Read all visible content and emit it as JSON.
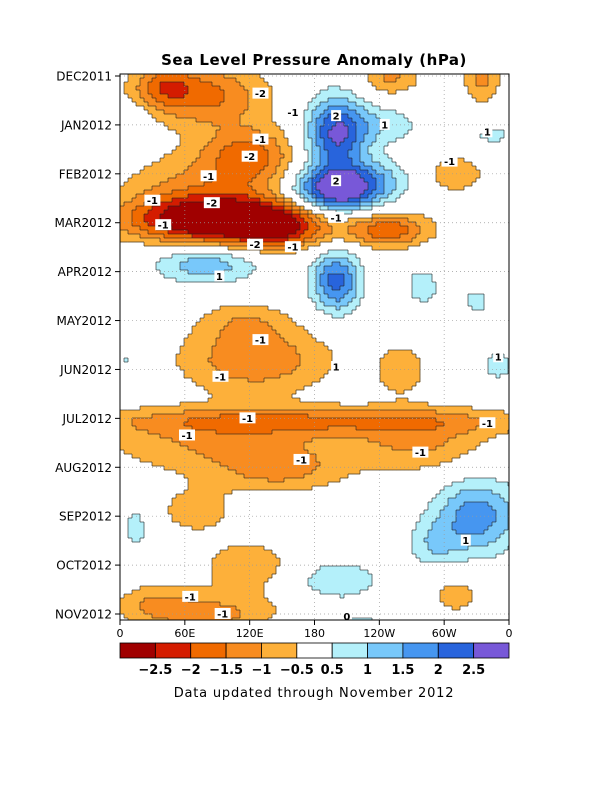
{
  "chart_data": {
    "type": "heatmap",
    "title": "Sea Level Pressure Anomaly (hPa)",
    "footer": "Data updated through November 2012",
    "x_axis": {
      "range": [
        0,
        360
      ],
      "ticks": [
        {
          "lon": 0,
          "label": "0"
        },
        {
          "lon": 60,
          "label": "60E"
        },
        {
          "lon": 120,
          "label": "120E"
        },
        {
          "lon": 180,
          "label": "180"
        },
        {
          "lon": 240,
          "label": "120W"
        },
        {
          "lon": 300,
          "label": "60W"
        },
        {
          "lon": 360,
          "label": "0"
        }
      ]
    },
    "y_axis": {
      "range": [
        0,
        11
      ],
      "direction": "top-to-bottom",
      "ticks": [
        {
          "month": 0,
          "label": "DEC2011"
        },
        {
          "month": 1,
          "label": "JAN2012"
        },
        {
          "month": 2,
          "label": "FEB2012"
        },
        {
          "month": 3,
          "label": "MAR2012"
        },
        {
          "month": 4,
          "label": "APR2012"
        },
        {
          "month": 5,
          "label": "MAY2012"
        },
        {
          "month": 6,
          "label": "JUN2012"
        },
        {
          "month": 7,
          "label": "JUL2012"
        },
        {
          "month": 8,
          "label": "AUG2012"
        },
        {
          "month": 9,
          "label": "SEP2012"
        },
        {
          "month": 10,
          "label": "OCT2012"
        },
        {
          "month": 11,
          "label": "NOV2012"
        }
      ]
    },
    "colorbar": {
      "bounds": [
        -3,
        -2.5,
        -2,
        -1.5,
        -1,
        -0.5,
        0.5,
        1,
        1.5,
        2,
        2.5,
        3
      ],
      "colors": [
        "#a00000",
        "#d41c00",
        "#f06a00",
        "#f88c20",
        "#fdb03a",
        "#ffffff",
        "#b4f0fa",
        "#78c8fa",
        "#4696f0",
        "#2864dc",
        "#7858d8"
      ],
      "labels": [
        {
          "at": -2.5,
          "text": "−2.5"
        },
        {
          "at": -2,
          "text": "−2"
        },
        {
          "at": -1.5,
          "text": "−1.5"
        },
        {
          "at": -1,
          "text": "−1"
        },
        {
          "at": -0.5,
          "text": "−0.5"
        },
        {
          "at": 0.5,
          "text": "0.5"
        },
        {
          "at": 1,
          "text": "1"
        },
        {
          "at": 1.5,
          "text": "1.5"
        },
        {
          "at": 2,
          "text": "2"
        },
        {
          "at": 2.5,
          "text": "2.5"
        }
      ]
    },
    "anomaly_features": [
      {
        "lon": 80,
        "month": 0.4,
        "value": -1.6,
        "sx": 40,
        "sy": 0.45
      },
      {
        "lon": 40,
        "month": 0.2,
        "value": -1.2,
        "sx": 20,
        "sy": 0.3
      },
      {
        "lon": 250,
        "month": 0.0,
        "value": -1.1,
        "sx": 20,
        "sy": 0.3
      },
      {
        "lon": 335,
        "month": 0.0,
        "value": -1.2,
        "sx": 12,
        "sy": 0.4
      },
      {
        "lon": 200,
        "month": 1.2,
        "value": 2.6,
        "sx": 20,
        "sy": 0.55
      },
      {
        "lon": 245,
        "month": 1.0,
        "value": 0.8,
        "sx": 25,
        "sy": 0.3
      },
      {
        "lon": 15,
        "month": 1.0,
        "value": 0.6,
        "sx": 10,
        "sy": 0.25
      },
      {
        "lon": 345,
        "month": 1.2,
        "value": 0.6,
        "sx": 20,
        "sy": 0.25
      },
      {
        "lon": 120,
        "month": 1.6,
        "value": -1.5,
        "sx": 30,
        "sy": 0.4
      },
      {
        "lon": 80,
        "month": 2.4,
        "value": -1.2,
        "sx": 55,
        "sy": 0.6
      },
      {
        "lon": 310,
        "month": 2.0,
        "value": -0.9,
        "sx": 20,
        "sy": 0.3
      },
      {
        "lon": 200,
        "month": 2.35,
        "value": 3.2,
        "sx": 28,
        "sy": 0.33
      },
      {
        "lon": 238,
        "month": 2.1,
        "value": 0.8,
        "sx": 25,
        "sy": 0.3
      },
      {
        "lon": 95,
        "month": 2.95,
        "value": -3.1,
        "sx": 60,
        "sy": 0.32
      },
      {
        "lon": 145,
        "month": 3.15,
        "value": -1.4,
        "sx": 30,
        "sy": 0.3
      },
      {
        "lon": 248,
        "month": 3.15,
        "value": -1.8,
        "sx": 28,
        "sy": 0.25
      },
      {
        "lon": 80,
        "month": 3.85,
        "value": 1.4,
        "sx": 35,
        "sy": 0.28
      },
      {
        "lon": 200,
        "month": 4.2,
        "value": 2.2,
        "sx": 16,
        "sy": 0.45
      },
      {
        "lon": 280,
        "month": 4.3,
        "value": 0.8,
        "sx": 12,
        "sy": 0.3
      },
      {
        "lon": 330,
        "month": 4.6,
        "value": 0.6,
        "sx": 14,
        "sy": 0.3
      },
      {
        "lon": 115,
        "month": 5.0,
        "value": -0.7,
        "sx": 30,
        "sy": 0.3
      },
      {
        "lon": 125,
        "month": 5.8,
        "value": -1.4,
        "sx": 50,
        "sy": 0.5
      },
      {
        "lon": 260,
        "month": 6.0,
        "value": -0.8,
        "sx": 18,
        "sy": 0.4
      },
      {
        "lon": 350,
        "month": 5.9,
        "value": 0.7,
        "sx": 12,
        "sy": 0.3
      },
      {
        "lon": 5,
        "month": 5.8,
        "value": 0.6,
        "sx": 8,
        "sy": 0.2
      },
      {
        "lon": 180,
        "month": 7.05,
        "value": -1.2,
        "sx": 150,
        "sy": 0.2
      },
      {
        "lon": 100,
        "month": 7.5,
        "value": -1.1,
        "sx": 80,
        "sy": 0.45
      },
      {
        "lon": 280,
        "month": 7.5,
        "value": -1.0,
        "sx": 45,
        "sy": 0.45
      },
      {
        "lon": 150,
        "month": 8.1,
        "value": -0.9,
        "sx": 40,
        "sy": 0.3
      },
      {
        "lon": 330,
        "month": 9.0,
        "value": 1.8,
        "sx": 28,
        "sy": 0.55
      },
      {
        "lon": 290,
        "month": 9.6,
        "value": 0.8,
        "sx": 18,
        "sy": 0.35
      },
      {
        "lon": 15,
        "month": 9.2,
        "value": 0.8,
        "sx": 10,
        "sy": 0.35
      },
      {
        "lon": 70,
        "month": 8.9,
        "value": -0.7,
        "sx": 30,
        "sy": 0.4
      },
      {
        "lon": 120,
        "month": 10.0,
        "value": -0.9,
        "sx": 30,
        "sy": 0.35
      },
      {
        "lon": 200,
        "month": 10.3,
        "value": 0.9,
        "sx": 30,
        "sy": 0.3
      },
      {
        "lon": 310,
        "month": 10.6,
        "value": -0.7,
        "sx": 20,
        "sy": 0.35
      },
      {
        "lon": 90,
        "month": 11.0,
        "value": -1.1,
        "sx": 45,
        "sy": 0.35
      },
      {
        "lon": 30,
        "month": 10.8,
        "value": -0.8,
        "sx": 25,
        "sy": 0.3
      },
      {
        "lon": 220,
        "month": 11.3,
        "value": 0.7,
        "sx": 25,
        "sy": 0.3
      },
      {
        "lon": 145,
        "month": 11.45,
        "value": 0.7,
        "sx": 10,
        "sy": 0.2
      }
    ],
    "contour_labels": [
      {
        "lon": 130,
        "month": 0.36,
        "text": "-2"
      },
      {
        "lon": 160,
        "month": 0.75,
        "text": "-1"
      },
      {
        "lon": 200,
        "month": 0.82,
        "text": "2"
      },
      {
        "lon": 245,
        "month": 1.0,
        "text": "1"
      },
      {
        "lon": 340,
        "month": 1.15,
        "text": "1"
      },
      {
        "lon": 130,
        "month": 1.3,
        "text": "-1"
      },
      {
        "lon": 120,
        "month": 1.65,
        "text": "-2"
      },
      {
        "lon": 305,
        "month": 1.75,
        "text": "-1"
      },
      {
        "lon": 82,
        "month": 2.05,
        "text": "-1"
      },
      {
        "lon": 200,
        "month": 2.15,
        "text": "2"
      },
      {
        "lon": 30,
        "month": 2.55,
        "text": "-1"
      },
      {
        "lon": 85,
        "month": 2.6,
        "text": "-2"
      },
      {
        "lon": 200,
        "month": 2.9,
        "text": "-1"
      },
      {
        "lon": 40,
        "month": 3.05,
        "text": "-1"
      },
      {
        "lon": 125,
        "month": 3.45,
        "text": "-2"
      },
      {
        "lon": 160,
        "month": 3.5,
        "text": "-1"
      },
      {
        "lon": 92,
        "month": 4.1,
        "text": "1"
      },
      {
        "lon": 200,
        "month": 5.95,
        "text": "1"
      },
      {
        "lon": 130,
        "month": 5.4,
        "text": "-1"
      },
      {
        "lon": 93,
        "month": 6.15,
        "text": "-1"
      },
      {
        "lon": 350,
        "month": 5.75,
        "text": "1"
      },
      {
        "lon": 118,
        "month": 7.0,
        "text": "-1"
      },
      {
        "lon": 340,
        "month": 7.1,
        "text": "-1"
      },
      {
        "lon": 62,
        "month": 7.35,
        "text": "-1"
      },
      {
        "lon": 168,
        "month": 7.85,
        "text": "-1"
      },
      {
        "lon": 278,
        "month": 7.7,
        "text": "-1"
      },
      {
        "lon": 320,
        "month": 9.5,
        "text": "1"
      },
      {
        "lon": 65,
        "month": 10.65,
        "text": "-1"
      },
      {
        "lon": 95,
        "month": 11.0,
        "text": "-1"
      },
      {
        "lon": 210,
        "month": 11.05,
        "text": "0"
      }
    ]
  }
}
